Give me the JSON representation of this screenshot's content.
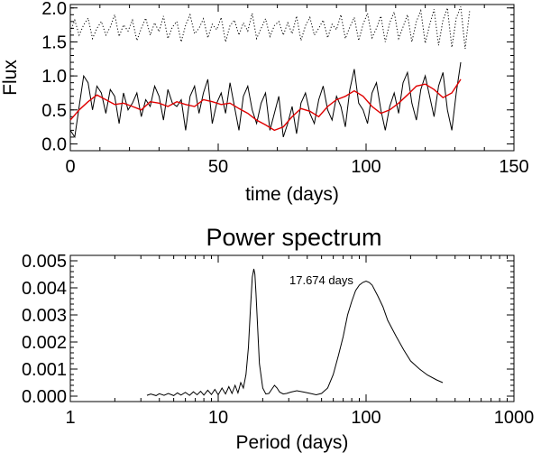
{
  "chart_data": [
    {
      "type": "line",
      "title": "",
      "xlabel": "time (days)",
      "ylabel": "Flux",
      "xlim": [
        0,
        150
      ],
      "ylim": [
        -0.1,
        2.05
      ],
      "xticks": [
        "0",
        "50",
        "100",
        "150"
      ],
      "yticks": [
        "0.0",
        "0.5",
        "1.0",
        "1.5",
        "2.0"
      ],
      "series": [
        {
          "style": "dotted",
          "color": "#000000",
          "x": [
            0,
            1.5,
            3,
            4.5,
            6,
            7.5,
            9,
            10.5,
            12,
            13.5,
            15,
            16.5,
            18,
            19.5,
            21,
            22.5,
            24,
            25.5,
            27,
            28.5,
            30,
            31.5,
            33,
            34.5,
            36,
            37.5,
            39,
            40.5,
            42,
            43.5,
            45,
            46.5,
            48,
            49.5,
            51,
            52.5,
            54,
            55.5,
            57,
            58.5,
            60,
            61.5,
            63,
            64.5,
            66,
            67.5,
            69,
            70.5,
            72,
            73.5,
            75,
            76.5,
            78,
            79.5,
            81,
            82.5,
            84,
            85.5,
            87,
            88.5,
            90,
            91.5,
            93,
            94.5,
            96,
            97.5,
            99,
            100.5,
            102,
            103.5,
            105,
            106.5,
            108,
            109.5,
            111,
            112.5,
            114,
            115.5,
            117,
            118.5,
            120,
            121.5,
            123,
            124.5,
            126,
            127.5,
            129,
            130.5,
            132,
            133.5,
            135
          ],
          "values": [
            1.65,
            1.82,
            1.6,
            1.75,
            1.85,
            1.55,
            1.7,
            1.8,
            1.6,
            1.72,
            1.9,
            1.58,
            1.75,
            1.66,
            1.82,
            1.52,
            1.7,
            1.85,
            1.6,
            1.78,
            1.65,
            1.88,
            1.55,
            1.72,
            1.8,
            1.5,
            1.75,
            1.9,
            1.62,
            1.7,
            1.84,
            1.56,
            1.76,
            1.68,
            1.86,
            1.5,
            1.74,
            1.82,
            1.6,
            1.78,
            1.66,
            1.92,
            1.55,
            1.7,
            1.84,
            1.58,
            1.74,
            1.8,
            1.6,
            1.78,
            1.62,
            1.88,
            1.52,
            1.74,
            1.86,
            1.6,
            1.7,
            1.82,
            1.56,
            1.76,
            1.68,
            1.9,
            1.55,
            1.72,
            1.86,
            1.52,
            1.76,
            1.92,
            1.56,
            1.7,
            1.88,
            1.5,
            1.78,
            1.94,
            1.55,
            1.72,
            1.9,
            1.5,
            1.8,
            1.96,
            1.48,
            1.75,
            1.98,
            1.45,
            1.82,
            2.0,
            1.42,
            1.85,
            2.02,
            1.4,
            1.95
          ]
        },
        {
          "style": "solid",
          "color": "#000000",
          "x": [
            0,
            1.5,
            3,
            4.5,
            6,
            7.5,
            9,
            10.5,
            12,
            13.5,
            15,
            16.5,
            18,
            19.5,
            21,
            22.5,
            24,
            25.5,
            27,
            28.5,
            30,
            31.5,
            33,
            34.5,
            36,
            37.5,
            39,
            40.5,
            42,
            43.5,
            45,
            46.5,
            48,
            49.5,
            51,
            52.5,
            54,
            55.5,
            57,
            58.5,
            60,
            61.5,
            63,
            64.5,
            66,
            67.5,
            69,
            70.5,
            72,
            73.5,
            75,
            76.5,
            78,
            79.5,
            81,
            82.5,
            84,
            85.5,
            87,
            88.5,
            90,
            91.5,
            93,
            94.5,
            96,
            97.5,
            99,
            100.5,
            102,
            103.5,
            105,
            106.5,
            108,
            109.5,
            111,
            112.5,
            114,
            115.5,
            117,
            118.5,
            120,
            121.5,
            123,
            124.5,
            126,
            127.5,
            129,
            130.5,
            132
          ],
          "values": [
            0.2,
            0.1,
            0.55,
            1.0,
            0.9,
            0.5,
            0.85,
            0.75,
            0.45,
            0.8,
            0.7,
            0.3,
            0.75,
            0.5,
            0.6,
            0.75,
            0.4,
            0.65,
            0.55,
            0.85,
            0.7,
            0.35,
            0.8,
            0.6,
            0.55,
            0.65,
            0.2,
            0.7,
            0.85,
            0.45,
            0.75,
            0.95,
            0.3,
            0.6,
            0.75,
            0.45,
            0.9,
            0.55,
            0.2,
            0.7,
            0.85,
            0.5,
            0.3,
            0.6,
            0.75,
            0.2,
            0.45,
            0.7,
            0.1,
            0.3,
            0.55,
            0.15,
            0.6,
            0.75,
            0.45,
            0.3,
            0.65,
            0.85,
            0.5,
            0.35,
            0.7,
            0.55,
            0.25,
            0.8,
            1.1,
            0.6,
            0.5,
            0.3,
            0.75,
            0.9,
            0.5,
            0.2,
            0.55,
            0.75,
            0.45,
            0.9,
            1.05,
            0.6,
            0.35,
            0.8,
            1.0,
            0.7,
            0.4,
            0.85,
            1.05,
            0.5,
            0.2,
            0.75,
            1.2
          ]
        },
        {
          "style": "solid",
          "color": "#e00000",
          "x": [
            0,
            3,
            6,
            9,
            12,
            15,
            18,
            21,
            24,
            27,
            30,
            33,
            36,
            39,
            42,
            45,
            48,
            51,
            54,
            57,
            60,
            63,
            66,
            69,
            72,
            75,
            78,
            81,
            84,
            87,
            90,
            93,
            96,
            99,
            102,
            105,
            108,
            111,
            114,
            117,
            120,
            123,
            126,
            129,
            132
          ],
          "values": [
            0.35,
            0.5,
            0.62,
            0.72,
            0.65,
            0.58,
            0.6,
            0.55,
            0.5,
            0.62,
            0.6,
            0.55,
            0.62,
            0.58,
            0.55,
            0.65,
            0.62,
            0.58,
            0.6,
            0.52,
            0.45,
            0.35,
            0.28,
            0.2,
            0.25,
            0.4,
            0.52,
            0.48,
            0.4,
            0.55,
            0.65,
            0.7,
            0.78,
            0.7,
            0.55,
            0.45,
            0.5,
            0.6,
            0.72,
            0.85,
            0.88,
            0.8,
            0.68,
            0.75,
            0.95
          ]
        }
      ]
    },
    {
      "type": "line",
      "title": "Power spectrum",
      "xlabel": "Period (days)",
      "ylabel": "",
      "xscale": "log",
      "xlim": [
        1,
        1000
      ],
      "ylim": [
        -0.0002,
        0.0052
      ],
      "xticks": [
        "1",
        "10",
        "100",
        "1000"
      ],
      "yticks": [
        "0.000",
        "0.001",
        "0.002",
        "0.003",
        "0.004",
        "0.005"
      ],
      "annotation": "17.674 days",
      "series": [
        {
          "style": "solid",
          "color": "#000000",
          "x": [
            3.3,
            3.5,
            3.8,
            4.0,
            4.3,
            4.6,
            5.0,
            5.3,
            5.6,
            6.0,
            6.4,
            6.8,
            7.2,
            7.6,
            8.0,
            8.5,
            9.0,
            9.5,
            10.0,
            10.6,
            11.2,
            11.8,
            12.4,
            13.0,
            13.6,
            14.2,
            14.8,
            15.4,
            16.0,
            16.5,
            17.0,
            17.4,
            17.7,
            18.0,
            18.5,
            19.0,
            20.0,
            21.0,
            22.0,
            23.0,
            24.0,
            25.0,
            26.0,
            27.5,
            29.0,
            31.0,
            34.0,
            38.0,
            42.0,
            46.0,
            50.0,
            55.0,
            60.0,
            65.0,
            70.0,
            75.0,
            80.0,
            85.0,
            90.0,
            95.0,
            100.0,
            105.0,
            110.0,
            120.0,
            130.0,
            140.0,
            160.0,
            180.0,
            200.0,
            230.0,
            260.0,
            300.0,
            330.0
          ],
          "values": [
            3e-05,
            8e-05,
            2e-05,
            9e-05,
            3e-05,
            0.0001,
            2e-05,
            0.00012,
            4e-05,
            0.00014,
            3e-05,
            0.00016,
            5e-05,
            0.00018,
            4e-05,
            0.00022,
            6e-05,
            0.00025,
            5e-05,
            0.0003,
            8e-05,
            0.00035,
            0.0001,
            0.0004,
            0.00012,
            0.0005,
            0.0003,
            0.0008,
            0.0018,
            0.0032,
            0.0044,
            0.0047,
            0.0045,
            0.0038,
            0.0025,
            0.0012,
            0.0003,
            8e-05,
            0.0001,
            0.00025,
            0.0004,
            0.0003,
            0.00015,
            8e-05,
            0.0001,
            0.00015,
            0.0002,
            0.00015,
            0.0001,
            5e-05,
            0.0001,
            0.0003,
            0.0008,
            0.0015,
            0.0022,
            0.003,
            0.0035,
            0.0039,
            0.0041,
            0.0042,
            0.00425,
            0.0042,
            0.0041,
            0.0037,
            0.0033,
            0.0028,
            0.0022,
            0.0017,
            0.0013,
            0.001,
            0.00078,
            0.0006,
            0.0005
          ]
        }
      ]
    }
  ]
}
